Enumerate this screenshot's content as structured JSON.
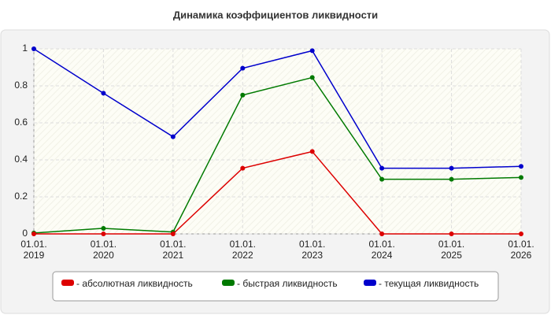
{
  "chart_data": {
    "type": "line",
    "title": "Динамика коэффициентов ликвидности",
    "categories": [
      "01.01. 2019",
      "01.01. 2020",
      "01.01. 2021",
      "01.01. 2022",
      "01.01. 2023",
      "01.01. 2024",
      "01.01. 2025",
      "01.01. 2026"
    ],
    "series": [
      {
        "name": "- текущая ликвидность",
        "color": "#0000cc",
        "values": [
          1.0,
          0.76,
          0.525,
          0.895,
          0.99,
          0.355,
          0.355,
          0.365
        ]
      },
      {
        "name": "- быстрая ликвидность",
        "color": "#007a00",
        "values": [
          0.005,
          0.03,
          0.01,
          0.75,
          0.845,
          0.295,
          0.295,
          0.305
        ]
      },
      {
        "name": "- абсолютная ликвидность",
        "color": "#dd0000",
        "values": [
          0,
          0,
          0,
          0.355,
          0.445,
          0,
          0,
          0
        ]
      }
    ],
    "legend_order": [
      2,
      1,
      0
    ],
    "ylim": [
      0,
      1
    ],
    "yticks": [
      0,
      0.2,
      0.4,
      0.6,
      0.8,
      1
    ],
    "grid": true
  }
}
